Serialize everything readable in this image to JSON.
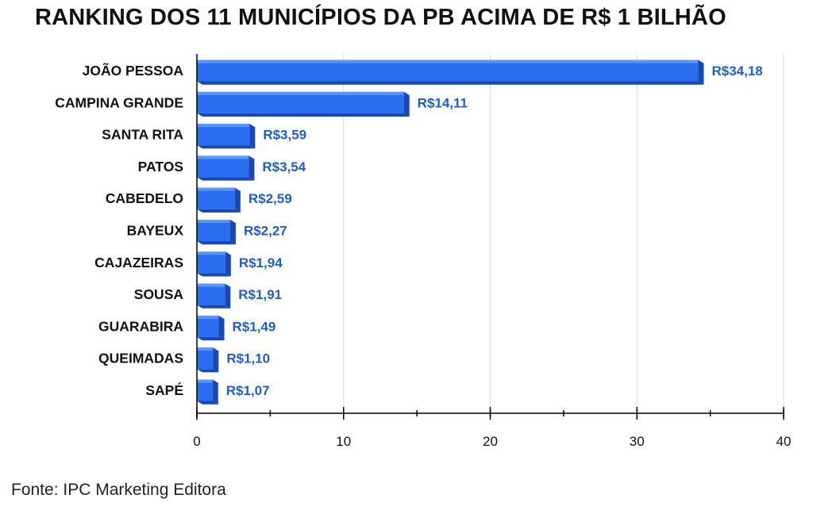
{
  "title": "RANKING DOS 11 MUNICÍPIOS DA PB ACIMA DE R$ 1 BILHÃO",
  "source": "Fonte: IPC Marketing Editora",
  "colors": {
    "bar_front": "#2a6ef0",
    "bar_top": "#5b95f7",
    "bar_side": "#1a48b3",
    "value_label": "#1f5ec4",
    "grid": "#d9d9d9",
    "axis": "#000000"
  },
  "chart_data": {
    "type": "bar",
    "orientation": "horizontal",
    "categories": [
      "JOÃO PESSOA",
      "CAMPINA GRANDE",
      "SANTA RITA",
      "PATOS",
      "CABEDELO",
      "BAYEUX",
      "CAJAZEIRAS",
      "SOUSA",
      "GUARABIRA",
      "QUEIMADAS",
      "SAPÉ"
    ],
    "values": [
      34.18,
      14.11,
      3.59,
      3.54,
      2.59,
      2.27,
      1.94,
      1.91,
      1.49,
      1.1,
      1.07
    ],
    "value_labels": [
      "R$34,18",
      "R$14,11",
      "R$3,59",
      "R$3,54",
      "R$2,59",
      "R$2,27",
      "R$1,94",
      "R$1,91",
      "R$1,49",
      "R$1,10",
      "R$1,07"
    ],
    "xlim": [
      0,
      40
    ],
    "xticks": [
      0,
      10,
      20,
      30,
      40
    ],
    "xtick_labels": [
      "0",
      "10",
      "20",
      "30",
      "40"
    ],
    "minor_ticks": true,
    "grid": "vertical",
    "bar_style": "3d"
  }
}
